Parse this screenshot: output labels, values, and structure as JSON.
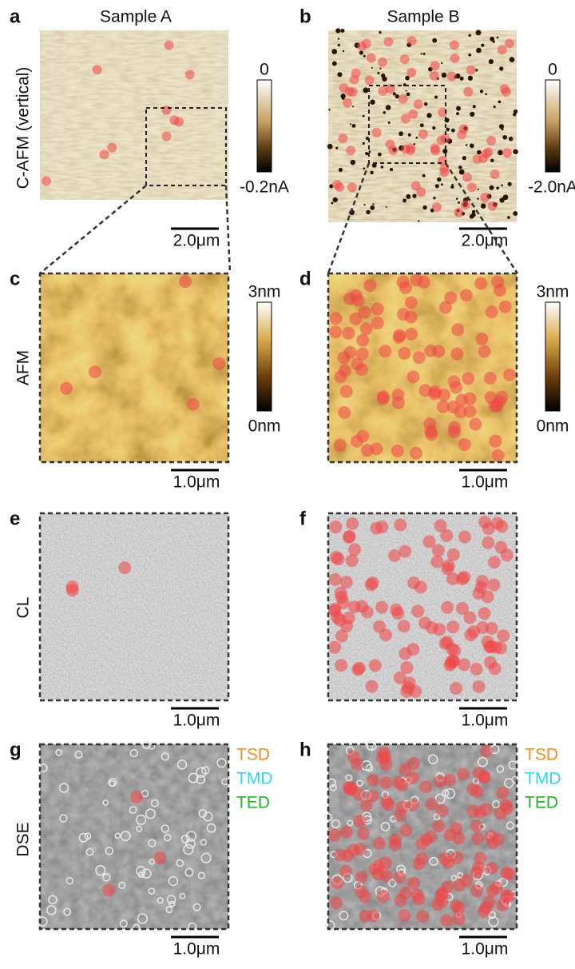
{
  "columns": [
    "Sample A",
    "Sample B"
  ],
  "rows": [
    {
      "label": "C-AFM (vertical)",
      "panels": [
        {
          "letter": "a",
          "scale_bar": "2.0μm",
          "colorbar": {
            "top": "0",
            "bottom": "-0.2nA"
          }
        },
        {
          "letter": "b",
          "scale_bar": "2.0μm",
          "colorbar": {
            "top": "0",
            "bottom": "-2.0nA"
          }
        }
      ]
    },
    {
      "label": "AFM",
      "panels": [
        {
          "letter": "c",
          "scale_bar": "1.0μm",
          "colorbar": {
            "top": "3nm",
            "bottom": "0nm"
          }
        },
        {
          "letter": "d",
          "scale_bar": "1.0μm",
          "colorbar": {
            "top": "3nm",
            "bottom": "0nm"
          }
        }
      ]
    },
    {
      "label": "CL",
      "panels": [
        {
          "letter": "e",
          "scale_bar": "1.0μm"
        },
        {
          "letter": "f",
          "scale_bar": "1.0μm"
        }
      ]
    },
    {
      "label": "DSE",
      "panels": [
        {
          "letter": "g",
          "scale_bar": "1.0μm",
          "legend": [
            {
              "text": "TSD",
              "color": "#f28a1e"
            },
            {
              "text": "TMD",
              "color": "#2fd8e8"
            },
            {
              "text": "TED",
              "color": "#22b322"
            }
          ]
        },
        {
          "letter": "h",
          "scale_bar": "1.0μm",
          "legend": [
            {
              "text": "TSD",
              "color": "#f28a1e"
            },
            {
              "text": "TMD",
              "color": "#2fd8e8"
            },
            {
              "text": "TED",
              "color": "#22b322"
            }
          ]
        }
      ]
    }
  ]
}
